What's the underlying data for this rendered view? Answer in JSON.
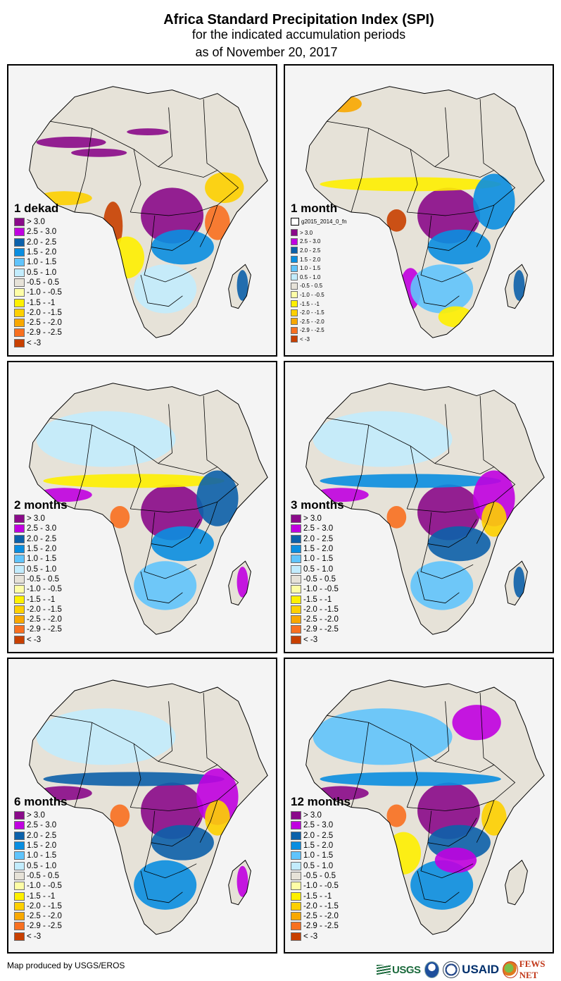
{
  "title": {
    "main": "Africa Standard Precipitation Index (SPI)",
    "sub": "for the indicated accumulation periods",
    "date": "as of November 20, 2017"
  },
  "legend_classes": [
    {
      "label": "> 3.0",
      "color": "#8a0a8a"
    },
    {
      "label": "2.5 - 3.0",
      "color": "#c000e0"
    },
    {
      "label": "2.0 - 2.5",
      "color": "#0c61aa"
    },
    {
      "label": "1.5 - 2.0",
      "color": "#0a8ee0"
    },
    {
      "label": "1.0 - 1.5",
      "color": "#60c4fc"
    },
    {
      "label": "0.5 - 1.0",
      "color": "#c2ecfd"
    },
    {
      "label": "-0.5 - 0.5",
      "color": "#e6e2d8"
    },
    {
      "label": "-1.0 - -0.5",
      "color": "#fdfda6"
    },
    {
      "label": "-1.5 - -1",
      "color": "#fef000"
    },
    {
      "label": "-2.0 - -1.5",
      "color": "#fdd000"
    },
    {
      "label": "-2.5 - -2.0",
      "color": "#f8a800"
    },
    {
      "label": "-2.9 - -2.5",
      "color": "#f87020"
    },
    {
      "label": "< -3",
      "color": "#c84000"
    }
  ],
  "colors": {
    "ocean": "#f4f4f4",
    "border": "#000000",
    "panel_frame": "#000000"
  },
  "panels": [
    {
      "id": "1-dekad",
      "label": "1 dekad",
      "layer_name": null,
      "patterns": [
        {
          "region": "central-africa",
          "class": 0
        },
        {
          "region": "congo-east",
          "class": 3
        },
        {
          "region": "angola-coast",
          "class": 12
        },
        {
          "region": "angola-interior",
          "class": 8
        },
        {
          "region": "horn-ethiopia",
          "class": 9
        },
        {
          "region": "kenya",
          "class": 11
        },
        {
          "region": "sahara-streaks",
          "class": 0
        },
        {
          "region": "madagascar",
          "class": 2
        },
        {
          "region": "southern-africa",
          "class": 5
        },
        {
          "region": "west-coast",
          "class": 9
        }
      ]
    },
    {
      "id": "1-month",
      "label": "1 month",
      "layer_name": "g2015_2014_0_fn",
      "patterns": [
        {
          "region": "central-africa",
          "class": 0
        },
        {
          "region": "congo-east",
          "class": 3
        },
        {
          "region": "gabon",
          "class": 12
        },
        {
          "region": "sahel-belt",
          "class": 8
        },
        {
          "region": "morocco",
          "class": 10
        },
        {
          "region": "namibia",
          "class": 1
        },
        {
          "region": "southern-africa",
          "class": 4
        },
        {
          "region": "east-africa",
          "class": 3
        },
        {
          "region": "madagascar",
          "class": 2
        },
        {
          "region": "south-africa-east",
          "class": 8
        }
      ]
    },
    {
      "id": "2-months",
      "label": "2 months",
      "layer_name": null,
      "patterns": [
        {
          "region": "central-africa",
          "class": 0
        },
        {
          "region": "congo-east",
          "class": 3
        },
        {
          "region": "gabon",
          "class": 11
        },
        {
          "region": "sahel-belt",
          "class": 8
        },
        {
          "region": "west-coast",
          "class": 1
        },
        {
          "region": "southern-africa",
          "class": 4
        },
        {
          "region": "east-africa",
          "class": 2
        },
        {
          "region": "sahara-west",
          "class": 5
        },
        {
          "region": "madagascar",
          "class": 1
        }
      ]
    },
    {
      "id": "3-months",
      "label": "3 months",
      "layer_name": null,
      "patterns": [
        {
          "region": "central-africa",
          "class": 0
        },
        {
          "region": "congo-east",
          "class": 2
        },
        {
          "region": "gabon",
          "class": 11
        },
        {
          "region": "sahel-belt",
          "class": 3
        },
        {
          "region": "west-coast",
          "class": 1
        },
        {
          "region": "southern-africa",
          "class": 4
        },
        {
          "region": "east-africa",
          "class": 1
        },
        {
          "region": "sahara-west",
          "class": 5
        },
        {
          "region": "madagascar",
          "class": 2
        },
        {
          "region": "kenya",
          "class": 9
        }
      ]
    },
    {
      "id": "6-months",
      "label": "6 months",
      "layer_name": null,
      "patterns": [
        {
          "region": "central-africa",
          "class": 0
        },
        {
          "region": "congo-east",
          "class": 2
        },
        {
          "region": "gabon",
          "class": 11
        },
        {
          "region": "sahel-belt",
          "class": 2
        },
        {
          "region": "west-coast",
          "class": 0
        },
        {
          "region": "southern-africa",
          "class": 3
        },
        {
          "region": "east-africa",
          "class": 1
        },
        {
          "region": "sahara-west",
          "class": 5
        },
        {
          "region": "madagascar",
          "class": 1
        },
        {
          "region": "kenya",
          "class": 9
        }
      ]
    },
    {
      "id": "12-months",
      "label": "12 months",
      "layer_name": null,
      "patterns": [
        {
          "region": "central-africa",
          "class": 0
        },
        {
          "region": "congo-east",
          "class": 2
        },
        {
          "region": "gabon",
          "class": 11
        },
        {
          "region": "sahel-belt",
          "class": 3
        },
        {
          "region": "west-coast",
          "class": 0
        },
        {
          "region": "sahara-west",
          "class": 4
        },
        {
          "region": "egypt-libya",
          "class": 1
        },
        {
          "region": "angola-interior",
          "class": 8
        },
        {
          "region": "southern-africa",
          "class": 3
        },
        {
          "region": "zambia",
          "class": 1
        },
        {
          "region": "kenya",
          "class": 9
        },
        {
          "region": "madagascar",
          "class": 6
        }
      ]
    }
  ],
  "footer": {
    "credit": "Map produced by USGS/EROS",
    "logos": [
      {
        "name": "USGS",
        "text": "USGS"
      },
      {
        "name": "NOAA",
        "text": ""
      },
      {
        "name": "USAID",
        "text": "USAID"
      },
      {
        "name": "FEWS NET",
        "text": "FEWS NET"
      }
    ]
  }
}
